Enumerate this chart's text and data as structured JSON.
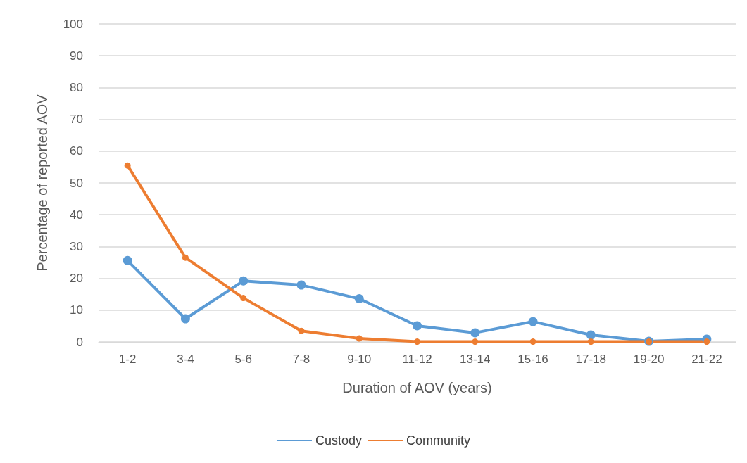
{
  "chart_data": {
    "type": "line",
    "xlabel": "Duration of AOV (years)",
    "ylabel": "Percentage of reported AOV",
    "categories": [
      "1-2",
      "3-4",
      "5-6",
      "7-8",
      "9-10",
      "11-12",
      "13-14",
      "15-16",
      "17-18",
      "19-20",
      "21-22"
    ],
    "series": [
      {
        "name": "Custody",
        "color": "#5b9bd5",
        "values": [
          25.6,
          7.3,
          19.2,
          17.9,
          13.6,
          5.1,
          2.9,
          6.4,
          2.2,
          0.2,
          0.9
        ]
      },
      {
        "name": "Community",
        "color": "#ed7d31",
        "values": [
          55.5,
          26.5,
          13.8,
          3.5,
          1.1,
          0.1,
          0.1,
          0.1,
          0.1,
          0.1,
          0.1
        ]
      }
    ],
    "ylim": [
      0,
      100
    ],
    "yticks": [
      0,
      10,
      20,
      30,
      40,
      50,
      60,
      70,
      80,
      90,
      100
    ],
    "grid": "y",
    "legend": "bottom",
    "marker": "circle",
    "line_style": "solid"
  }
}
